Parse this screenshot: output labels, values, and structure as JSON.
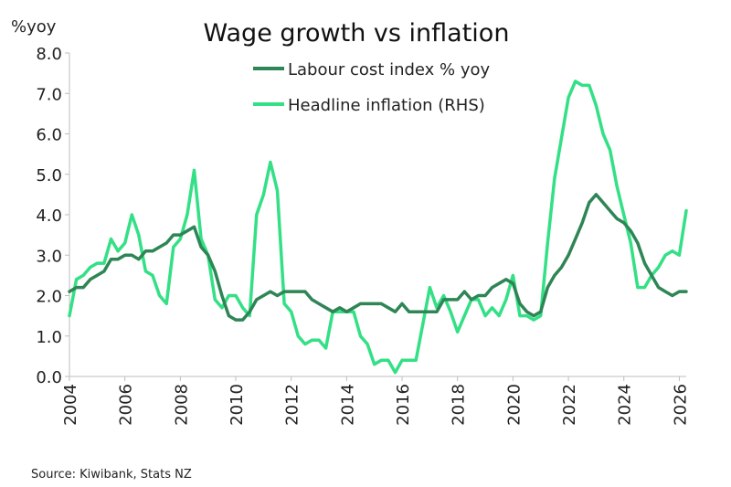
{
  "chart_data": {
    "type": "line",
    "title": "Wage growth vs inflation",
    "y_unit_label": "%yoy",
    "xlabel": "",
    "ylabel": "",
    "xlim": [
      2004,
      2026.25
    ],
    "ylim": [
      0,
      8
    ],
    "y_ticks": [
      "0.0",
      "1.0",
      "2.0",
      "3.0",
      "4.0",
      "5.0",
      "6.0",
      "7.0",
      "8.0"
    ],
    "x_ticks": [
      "2004",
      "2006",
      "2008",
      "2010",
      "2012",
      "2014",
      "2016",
      "2018",
      "2020",
      "2022",
      "2024",
      "2026"
    ],
    "grid": false,
    "legend_position": "top-center",
    "source": "Source:  Kiwibank, Stats NZ",
    "series": [
      {
        "name": "Labour cost index % yoy",
        "color": "#2e8555",
        "x": [
          2004.0,
          2004.25,
          2004.5,
          2004.75,
          2005.0,
          2005.25,
          2005.5,
          2005.75,
          2006.0,
          2006.25,
          2006.5,
          2006.75,
          2007.0,
          2007.25,
          2007.5,
          2007.75,
          2008.0,
          2008.25,
          2008.5,
          2008.75,
          2009.0,
          2009.25,
          2009.5,
          2009.75,
          2010.0,
          2010.25,
          2010.5,
          2010.75,
          2011.0,
          2011.25,
          2011.5,
          2011.75,
          2012.0,
          2012.25,
          2012.5,
          2012.75,
          2013.0,
          2013.25,
          2013.5,
          2013.75,
          2014.0,
          2014.25,
          2014.5,
          2014.75,
          2015.0,
          2015.25,
          2015.5,
          2015.75,
          2016.0,
          2016.25,
          2016.5,
          2016.75,
          2017.0,
          2017.25,
          2017.5,
          2017.75,
          2018.0,
          2018.25,
          2018.5,
          2018.75,
          2019.0,
          2019.25,
          2019.5,
          2019.75,
          2020.0,
          2020.25,
          2020.5,
          2020.75,
          2021.0,
          2021.25,
          2021.5,
          2021.75,
          2022.0,
          2022.25,
          2022.5,
          2022.75,
          2023.0,
          2023.25,
          2023.5,
          2023.75,
          2024.0,
          2024.25,
          2024.5,
          2024.75,
          2025.0,
          2025.25,
          2025.5,
          2025.75,
          2026.0,
          2026.25
        ],
        "values": [
          2.1,
          2.2,
          2.2,
          2.4,
          2.5,
          2.6,
          2.9,
          2.9,
          3.0,
          3.0,
          2.9,
          3.1,
          3.1,
          3.2,
          3.3,
          3.5,
          3.5,
          3.6,
          3.7,
          3.2,
          3.0,
          2.6,
          2.0,
          1.5,
          1.4,
          1.4,
          1.6,
          1.9,
          2.0,
          2.1,
          2.0,
          2.1,
          2.1,
          2.1,
          2.1,
          1.9,
          1.8,
          1.7,
          1.6,
          1.7,
          1.6,
          1.7,
          1.8,
          1.8,
          1.8,
          1.8,
          1.7,
          1.6,
          1.8,
          1.6,
          1.6,
          1.6,
          1.6,
          1.6,
          1.9,
          1.9,
          1.9,
          2.1,
          1.9,
          2.0,
          2.0,
          2.2,
          2.3,
          2.4,
          2.3,
          1.8,
          1.6,
          1.5,
          1.6,
          2.2,
          2.5,
          2.7,
          3.0,
          3.4,
          3.8,
          4.3,
          4.5,
          4.3,
          4.1,
          3.9,
          3.8,
          3.6,
          3.3,
          2.8,
          2.5,
          2.2,
          2.1,
          2.0,
          2.1,
          2.1
        ]
      },
      {
        "name": "Headline inflation (RHS)",
        "color": "#33e085",
        "x": [
          2004.0,
          2004.25,
          2004.5,
          2004.75,
          2005.0,
          2005.25,
          2005.5,
          2005.75,
          2006.0,
          2006.25,
          2006.5,
          2006.75,
          2007.0,
          2007.25,
          2007.5,
          2007.75,
          2008.0,
          2008.25,
          2008.5,
          2008.75,
          2009.0,
          2009.25,
          2009.5,
          2009.75,
          2010.0,
          2010.25,
          2010.5,
          2010.75,
          2011.0,
          2011.25,
          2011.5,
          2011.75,
          2012.0,
          2012.25,
          2012.5,
          2012.75,
          2013.0,
          2013.25,
          2013.5,
          2013.75,
          2014.0,
          2014.25,
          2014.5,
          2014.75,
          2015.0,
          2015.25,
          2015.5,
          2015.75,
          2016.0,
          2016.25,
          2016.5,
          2016.75,
          2017.0,
          2017.25,
          2017.5,
          2017.75,
          2018.0,
          2018.25,
          2018.5,
          2018.75,
          2019.0,
          2019.25,
          2019.5,
          2019.75,
          2020.0,
          2020.25,
          2020.5,
          2020.75,
          2021.0,
          2021.25,
          2021.5,
          2021.75,
          2022.0,
          2022.25,
          2022.5,
          2022.75,
          2023.0,
          2023.25,
          2023.5,
          2023.75,
          2024.0,
          2024.25,
          2024.5,
          2024.75,
          2025.0,
          2025.25,
          2025.5,
          2025.75,
          2026.0,
          2026.25
        ],
        "values": [
          1.5,
          2.4,
          2.5,
          2.7,
          2.8,
          2.8,
          3.4,
          3.1,
          3.3,
          4.0,
          3.5,
          2.6,
          2.5,
          2.0,
          1.8,
          3.2,
          3.4,
          4.0,
          5.1,
          3.4,
          3.0,
          1.9,
          1.7,
          2.0,
          2.0,
          1.7,
          1.5,
          4.0,
          4.5,
          5.3,
          4.6,
          1.8,
          1.6,
          1.0,
          0.8,
          0.9,
          0.9,
          0.7,
          1.6,
          1.6,
          1.6,
          1.6,
          1.0,
          0.8,
          0.3,
          0.4,
          0.4,
          0.1,
          0.4,
          0.4,
          0.4,
          1.3,
          2.2,
          1.7,
          2.0,
          1.6,
          1.1,
          1.5,
          1.9,
          1.9,
          1.5,
          1.7,
          1.5,
          1.9,
          2.5,
          1.5,
          1.5,
          1.4,
          1.5,
          3.3,
          4.9,
          5.9,
          6.9,
          7.3,
          7.2,
          7.2,
          6.7,
          6.0,
          5.6,
          4.7,
          4.0,
          3.3,
          2.2,
          2.2,
          2.5,
          2.7,
          3.0,
          3.1,
          3.0,
          4.1
        ]
      }
    ]
  }
}
